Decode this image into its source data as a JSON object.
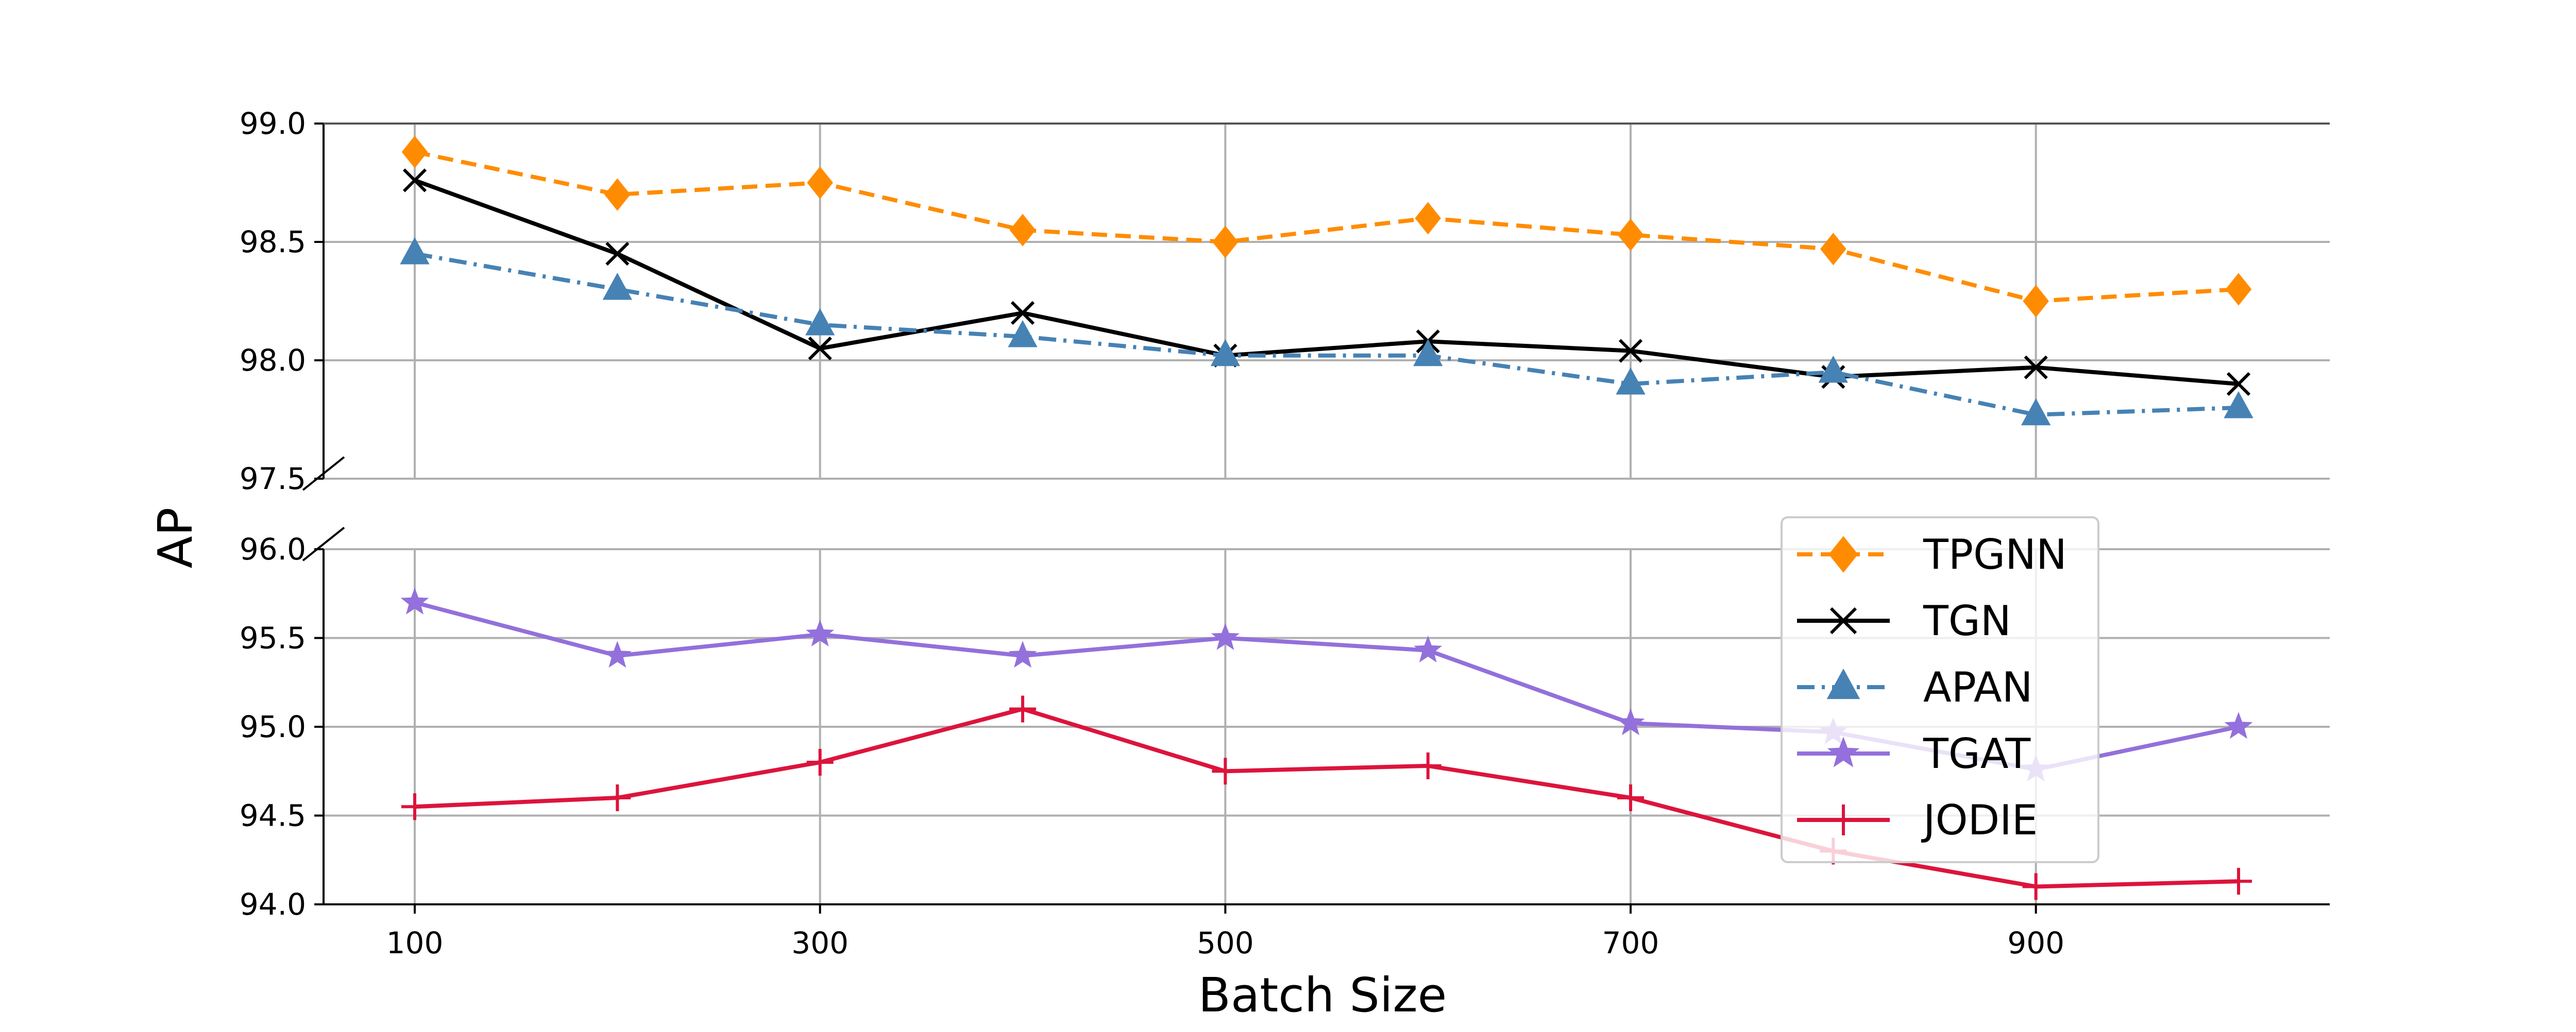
{
  "chart_data": {
    "type": "line",
    "xlabel": "Batch Size",
    "ylabel": "AP",
    "x": [
      100,
      200,
      300,
      400,
      500,
      600,
      700,
      800,
      900,
      1000
    ],
    "x_tick_labels": [
      "100",
      "300",
      "500",
      "700",
      "900"
    ],
    "x_ticks": [
      100,
      300,
      500,
      700,
      900
    ],
    "xlim": [
      55,
      1045
    ],
    "broken_y_axis": true,
    "upper_panel": {
      "ylim": [
        97.5,
        99.0
      ],
      "y_ticks": [
        97.5,
        98.0,
        98.5,
        99.0
      ],
      "y_tick_labels": [
        "97.5",
        "98.0",
        "98.5",
        "99.0"
      ]
    },
    "lower_panel": {
      "ylim": [
        94.0,
        96.0
      ],
      "y_ticks": [
        94.0,
        94.5,
        95.0,
        95.5,
        96.0
      ],
      "y_tick_labels": [
        "94.0",
        "94.5",
        "95.0",
        "95.5",
        "96.0"
      ]
    },
    "grid": true,
    "legend_position": "lower-right",
    "series": [
      {
        "name": "TPGNN",
        "panel": "upper",
        "color": "#ff8c00",
        "marker": "diamond",
        "line_style": "dashed",
        "values": [
          98.88,
          98.7,
          98.75,
          98.55,
          98.5,
          98.6,
          98.53,
          98.47,
          98.25,
          98.3
        ]
      },
      {
        "name": "TGN",
        "panel": "upper",
        "color": "#000000",
        "marker": "x",
        "line_style": "solid",
        "values": [
          98.76,
          98.45,
          98.05,
          98.2,
          98.02,
          98.08,
          98.04,
          97.93,
          97.97,
          97.9
        ]
      },
      {
        "name": "APAN",
        "panel": "upper",
        "color": "#4682b4",
        "marker": "triangle",
        "line_style": "dashdot",
        "values": [
          98.45,
          98.3,
          98.15,
          98.1,
          98.02,
          98.02,
          97.9,
          97.95,
          97.77,
          97.8
        ]
      },
      {
        "name": "TGAT",
        "panel": "lower",
        "color": "#9370db",
        "marker": "star",
        "line_style": "solid",
        "values": [
          95.7,
          95.4,
          95.52,
          95.4,
          95.5,
          95.43,
          95.02,
          94.97,
          94.76,
          95.0
        ]
      },
      {
        "name": "JODIE",
        "panel": "lower",
        "color": "#dc143c",
        "marker": "plus",
        "line_style": "solid",
        "values": [
          94.55,
          94.6,
          94.8,
          95.1,
          94.75,
          94.78,
          94.6,
          94.3,
          94.1,
          94.13
        ]
      }
    ]
  }
}
